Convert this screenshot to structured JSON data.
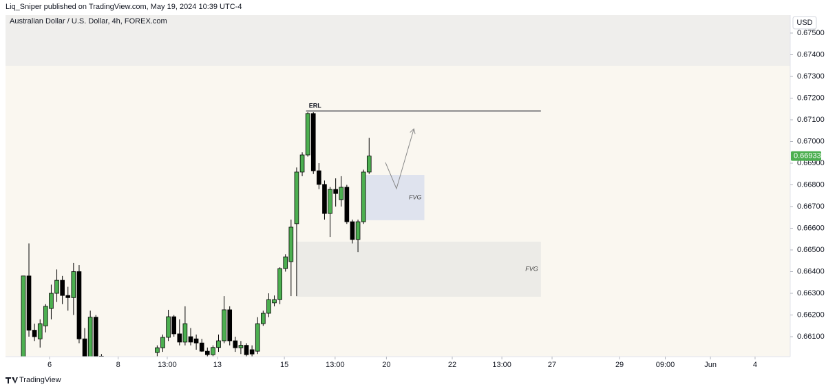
{
  "header": {
    "publisher": "Liq_Sniper published on TradingView.com, May 19, 2024 10:39 UTC-4",
    "brand": "TradingView"
  },
  "chart_data": {
    "type": "candlestick",
    "title": "Australian Dollar / U.S. Dollar, 4h, FOREX.com",
    "currency": "USD",
    "x": [
      0,
      1,
      2,
      3,
      4,
      5,
      6,
      7,
      8,
      9,
      10,
      11,
      12,
      13,
      14,
      24,
      25,
      26,
      27,
      28,
      29,
      30,
      31,
      32,
      33,
      34,
      35,
      36,
      37,
      38,
      39,
      40,
      41,
      42,
      43,
      44,
      45,
      46,
      47,
      48,
      49,
      50,
      51,
      52,
      53,
      54,
      55,
      56,
      57,
      58,
      59,
      60,
      61,
      62
    ],
    "open": [
      0.66,
      0.6638,
      0.6613,
      0.6609,
      0.6615,
      0.6623,
      0.663,
      0.6636,
      0.6629,
      0.6628,
      0.664,
      0.6609,
      0.66,
      0.6619,
      0.6601,
      0.66027,
      0.66049,
      0.66097,
      0.66192,
      0.66113,
      0.66075,
      0.661,
      0.6609,
      0.66071,
      0.66033,
      0.66017,
      0.6605,
      0.66081,
      0.66224,
      0.66081,
      0.66049,
      0.6606,
      0.6604,
      0.66033,
      0.6616,
      0.66208,
      0.66256,
      0.66271,
      0.66414,
      0.66446,
      0.66621,
      0.66859,
      0.66938,
      0.67129,
      0.66865,
      0.66802,
      0.66668,
      0.66779,
      0.66732,
      0.66789,
      0.6663,
      0.66548,
      0.6663,
      0.66859
    ],
    "high": [
      0.6638,
      0.6653,
      0.6616,
      0.6618,
      0.6625,
      0.6634,
      0.6641,
      0.6638,
      0.6633,
      0.6644,
      0.6643,
      0.6614,
      0.6622,
      0.662,
      0.6602,
      0.6606,
      0.6611,
      0.66224,
      0.662,
      0.6618,
      0.6624,
      0.6614,
      0.6611,
      0.6609,
      0.6605,
      0.6606,
      0.6611,
      0.66287,
      0.6624,
      0.661,
      0.6608,
      0.6607,
      0.6606,
      0.6619,
      0.6622,
      0.663,
      0.6629,
      0.6642,
      0.6648,
      0.6664,
      0.6688,
      0.6695,
      0.67135,
      0.67135,
      0.669,
      0.6682,
      0.6679,
      0.6683,
      0.6684,
      0.668,
      0.6664,
      0.6664,
      0.6687,
      0.67017
    ],
    "low": [
      0.6598,
      0.661,
      0.6608,
      0.6605,
      0.6612,
      0.6618,
      0.6626,
      0.6625,
      0.6622,
      0.662,
      0.6607,
      0.6598,
      0.6598,
      0.6598,
      0.6598,
      0.6601,
      0.6603,
      0.6608,
      0.661,
      0.6606,
      0.6606,
      0.6606,
      0.6604,
      0.6603,
      0.66,
      0.6601,
      0.6603,
      0.6607,
      0.6606,
      0.6603,
      0.6602,
      0.66,
      0.66,
      0.6602,
      0.6615,
      0.6619,
      0.6624,
      0.6625,
      0.664,
      0.66287,
      0.66287,
      0.6684,
      0.6693,
      0.6685,
      0.6678,
      0.6664,
      0.6656,
      0.667,
      0.667,
      0.6662,
      0.6653,
      0.6649,
      0.6662,
      0.6685
    ],
    "close": [
      0.6638,
      0.6613,
      0.661,
      0.6616,
      0.6624,
      0.663,
      0.6636,
      0.6629,
      0.6628,
      0.664,
      0.6609,
      0.66,
      0.6619,
      0.66,
      0.66,
      0.66049,
      0.66097,
      0.66192,
      0.66113,
      0.66075,
      0.6616,
      0.66075,
      0.66071,
      0.66033,
      0.66017,
      0.6605,
      0.66081,
      0.66224,
      0.66081,
      0.66049,
      0.6606,
      0.66017,
      0.6602,
      0.6616,
      0.66208,
      0.66271,
      0.66271,
      0.66414,
      0.66468,
      0.66605,
      0.66859,
      0.66938,
      0.67129,
      0.66865,
      0.66802,
      0.66668,
      0.66779,
      0.6676,
      0.66789,
      0.6663,
      0.66548,
      0.6663,
      0.66859,
      0.66933
    ],
    "up_color": "#4caf50",
    "down_color": "#000000",
    "last_price": {
      "value": 0.66933,
      "label": "0.66933",
      "color": "#4caf50"
    },
    "ylim": [
      0.66008,
      0.675825
    ],
    "yticks": [
      {
        "value": 0.661,
        "label": "0.66100"
      },
      {
        "value": 0.662,
        "label": "0.66200"
      },
      {
        "value": 0.663,
        "label": "0.66300"
      },
      {
        "value": 0.664,
        "label": "0.66400"
      },
      {
        "value": 0.665,
        "label": "0.66500"
      },
      {
        "value": 0.666,
        "label": "0.66600"
      },
      {
        "value": 0.667,
        "label": "0.66700"
      },
      {
        "value": 0.668,
        "label": "0.66800"
      },
      {
        "value": 0.669,
        "label": "0.66900"
      },
      {
        "value": 0.67,
        "label": "0.67000"
      },
      {
        "value": 0.671,
        "label": "0.67100"
      },
      {
        "value": 0.672,
        "label": "0.67200"
      },
      {
        "value": 0.673,
        "label": "0.67300"
      },
      {
        "value": 0.674,
        "label": "0.67400"
      },
      {
        "value": 0.675,
        "label": "0.67500"
      }
    ],
    "xlim": [
      -3.2,
      137.5
    ],
    "xticks": [
      {
        "value": 4.7,
        "label": "6"
      },
      {
        "value": 17.0,
        "label": "8"
      },
      {
        "value": 25.8,
        "label": "13:00"
      },
      {
        "value": 34.8,
        "label": "13"
      },
      {
        "value": 46.8,
        "label": "15"
      },
      {
        "value": 55.9,
        "label": "13:00"
      },
      {
        "value": 65.1,
        "label": "20"
      },
      {
        "value": 76.9,
        "label": "22"
      },
      {
        "value": 85.8,
        "label": "13:00"
      },
      {
        "value": 94.8,
        "label": "27"
      },
      {
        "value": 106.9,
        "label": "29"
      },
      {
        "value": 115.1,
        "label": "09:00"
      },
      {
        "value": 123.2,
        "label": "Jun"
      },
      {
        "value": 131.2,
        "label": "4"
      }
    ],
    "zones": [
      {
        "top": 0.675825,
        "bottom": 0.67348,
        "x0": -3.2,
        "x1": 137.5,
        "color": "#efeeec"
      },
      {
        "label": "FVG",
        "top": 0.66846,
        "bottom": 0.66637,
        "x0": 61.2,
        "x1": 71.9,
        "color": "#dfe3ee"
      },
      {
        "label": "FVG",
        "top": 0.66538,
        "bottom": 0.66284,
        "x0": 48.9,
        "x1": 92.8,
        "color": "#ecebe7"
      }
    ],
    "lines": [
      {
        "label": "ERL",
        "value": 0.67141,
        "x0": 50.7,
        "x1": 92.8,
        "color": "#131722"
      }
    ]
  }
}
